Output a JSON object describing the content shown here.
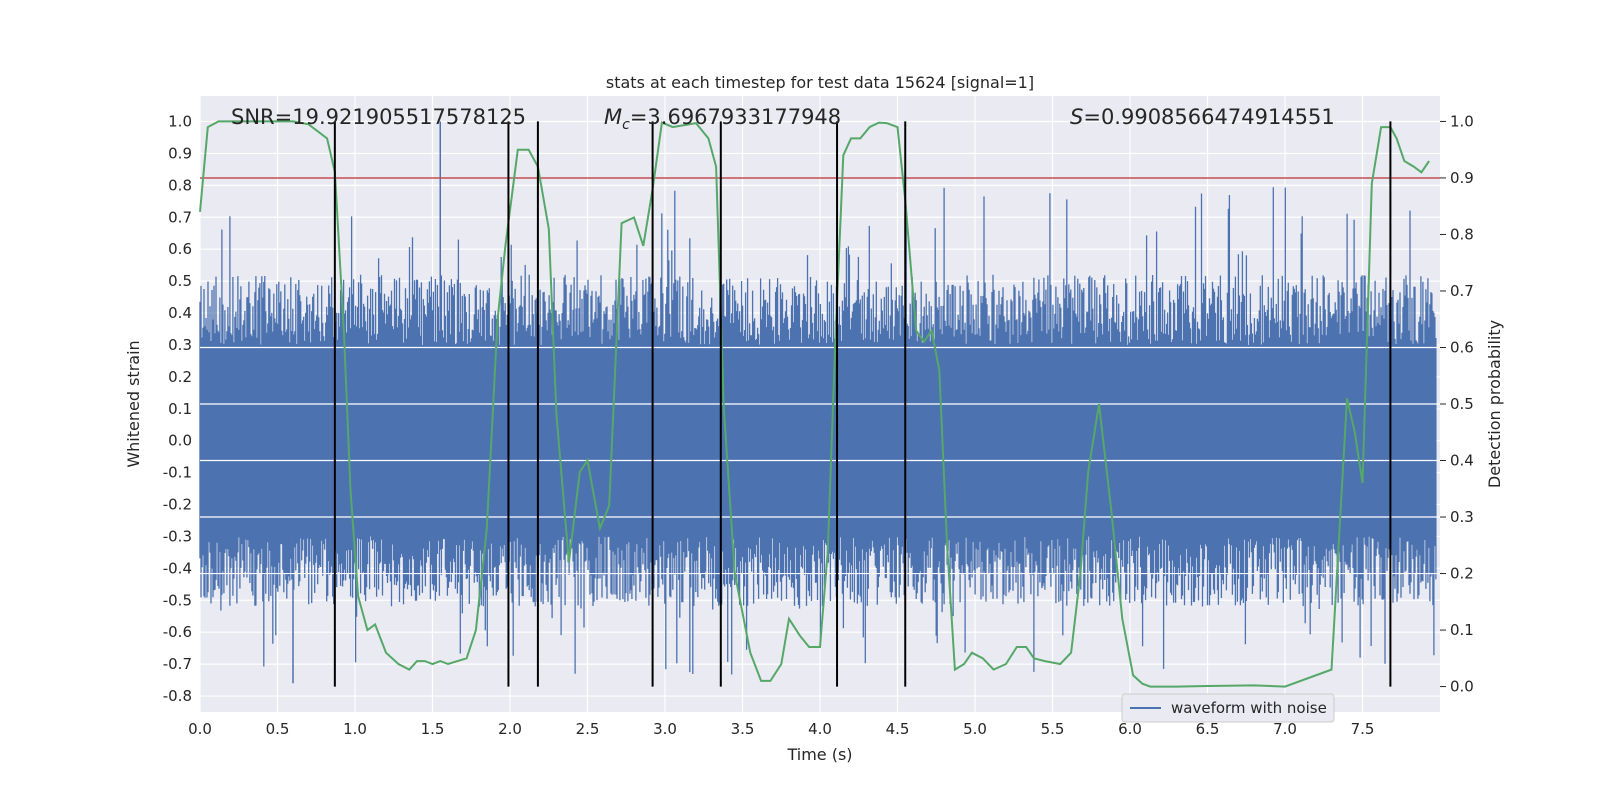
{
  "chart_data": {
    "type": "line",
    "title": "stats at each timestep for test data 15624 [signal=1]",
    "xlabel": "Time (s)",
    "ylabel_left": "Whitened strain",
    "ylabel_right": "Detection probability",
    "xlim": [
      0,
      8
    ],
    "ylim_left": [
      -0.85,
      1.08
    ],
    "ylim_right": [
      -0.045,
      1.045
    ],
    "x_ticks": [
      "0.0",
      "0.5",
      "1.0",
      "1.5",
      "2.0",
      "2.5",
      "3.0",
      "3.5",
      "4.0",
      "4.5",
      "5.0",
      "5.5",
      "6.0",
      "6.5",
      "7.0",
      "7.5"
    ],
    "y_ticks_left": [
      "-0.8",
      "-0.7",
      "-0.6",
      "-0.5",
      "-0.4",
      "-0.3",
      "-0.2",
      "-0.1",
      "0.0",
      "0.1",
      "0.2",
      "0.3",
      "0.4",
      "0.5",
      "0.6",
      "0.7",
      "0.8",
      "0.9",
      "1.0"
    ],
    "y_ticks_right": [
      "0.0",
      "0.1",
      "0.2",
      "0.3",
      "0.4",
      "0.5",
      "0.6",
      "0.7",
      "0.8",
      "0.9",
      "1.0"
    ],
    "annotations": {
      "snr": "SNR=19.921905517578125",
      "mc": "M",
      "mc_sub": "c",
      "mc_value": "=3.6967933177948",
      "s_sym": "S",
      "s_value": "=0.9908566474914551"
    },
    "legend": {
      "label": "waveform with noise",
      "placement": "lower-right"
    },
    "grid": true,
    "colors": {
      "waveform": "#4c72b0",
      "probability": "#55a868",
      "threshold": "#c44e52",
      "vlines": "#000000",
      "background": "#eaeaf2"
    },
    "threshold_probability": 0.9,
    "vertical_lines_x": [
      0.87,
      1.99,
      2.18,
      2.92,
      3.36,
      4.11,
      4.55,
      7.68
    ],
    "series": [
      {
        "name": "waveform with noise",
        "axis": "left",
        "x_range": [
          0,
          7.98
        ],
        "typical_amplitude": 0.42,
        "min": -0.76,
        "max": 1.0
      },
      {
        "axis": "right",
        "x": [
          0.0,
          0.05,
          0.12,
          0.25,
          0.4,
          0.6,
          0.7,
          0.82,
          0.87,
          0.93,
          0.97,
          1.02,
          1.08,
          1.13,
          1.2,
          1.28,
          1.35,
          1.4,
          1.45,
          1.5,
          1.55,
          1.6,
          1.72,
          1.78,
          1.85,
          1.92,
          1.97,
          2.05,
          2.12,
          2.18,
          2.25,
          2.3,
          2.38,
          2.45,
          2.5,
          2.58,
          2.64,
          2.72,
          2.8,
          2.86,
          2.92,
          2.98,
          3.05,
          3.2,
          3.28,
          3.33,
          3.38,
          3.45,
          3.55,
          3.62,
          3.68,
          3.75,
          3.8,
          3.87,
          3.93,
          4.0,
          4.05,
          4.1,
          4.15,
          4.2,
          4.26,
          4.32,
          4.38,
          4.43,
          4.5,
          4.55,
          4.62,
          4.67,
          4.72,
          4.77,
          4.82,
          4.87,
          4.93,
          4.98,
          5.05,
          5.12,
          5.2,
          5.27,
          5.33,
          5.38,
          5.45,
          5.55,
          5.62,
          5.68,
          5.73,
          5.8,
          5.88,
          5.95,
          6.02,
          6.08,
          6.13,
          6.2,
          6.3,
          6.5,
          6.8,
          7.0,
          7.3,
          7.4,
          7.45,
          7.5,
          7.56,
          7.62,
          7.68,
          7.72,
          7.77,
          7.83,
          7.88,
          7.93
        ],
        "values": [
          0.84,
          0.99,
          1.0,
          1.0,
          1.0,
          1.0,
          0.995,
          0.97,
          0.91,
          0.62,
          0.35,
          0.16,
          0.1,
          0.11,
          0.06,
          0.04,
          0.03,
          0.045,
          0.045,
          0.04,
          0.045,
          0.04,
          0.05,
          0.1,
          0.28,
          0.65,
          0.78,
          0.95,
          0.95,
          0.92,
          0.81,
          0.48,
          0.22,
          0.38,
          0.4,
          0.28,
          0.32,
          0.82,
          0.83,
          0.78,
          0.88,
          0.998,
          0.99,
          0.997,
          0.97,
          0.92,
          0.49,
          0.2,
          0.06,
          0.01,
          0.01,
          0.04,
          0.12,
          0.09,
          0.07,
          0.07,
          0.24,
          0.62,
          0.94,
          0.97,
          0.97,
          0.99,
          0.998,
          0.997,
          0.99,
          0.86,
          0.63,
          0.61,
          0.63,
          0.56,
          0.25,
          0.03,
          0.04,
          0.06,
          0.05,
          0.03,
          0.04,
          0.07,
          0.07,
          0.05,
          0.045,
          0.04,
          0.06,
          0.2,
          0.38,
          0.5,
          0.31,
          0.12,
          0.02,
          0.005,
          0.0,
          0.0,
          0.0,
          0.001,
          0.002,
          0.0,
          0.03,
          0.51,
          0.45,
          0.36,
          0.89,
          0.99,
          0.99,
          0.97,
          0.93,
          0.92,
          0.91,
          0.93
        ]
      }
    ]
  }
}
